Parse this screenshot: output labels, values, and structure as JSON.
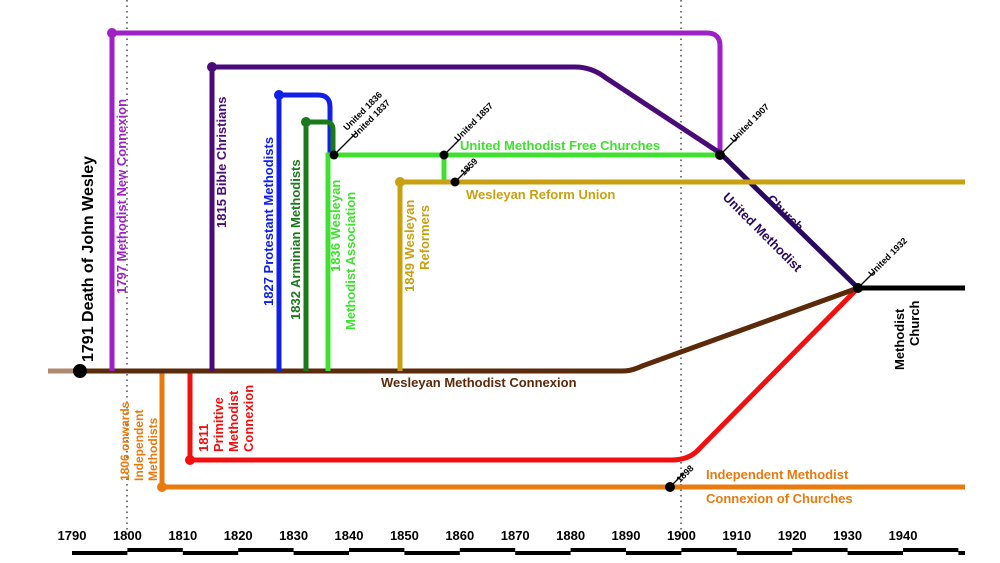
{
  "axis": {
    "years": [
      "1790",
      "1800",
      "1810",
      "1820",
      "1830",
      "1840",
      "1850",
      "1860",
      "1870",
      "1880",
      "1890",
      "1900",
      "1910",
      "1920",
      "1930",
      "1940"
    ]
  },
  "labels": {
    "wesley_death": "1791 Death of John Wesley",
    "new_connexion": "1797 Methodist New Connexion",
    "bible_christians": "1815 Bible Christians",
    "protestant_methodists": "1827 Protestant Methodists",
    "arminian_methodists": "1832 Arminian Methodists",
    "wma_line1": "1836 Wesleyan",
    "wma_line2": "Methodist Association",
    "reformers_line1": "1849 Wesleyan",
    "reformers_line2": "Reformers",
    "wesleyan_connexion": "Wesleyan Methodist Connexion",
    "independent_line1": "1806 onwards",
    "independent_line2": "Independent",
    "independent_line3": "Methodists",
    "primitive_line1": "1811",
    "primitive_line2": "Primitive",
    "primitive_line3": "Methodist",
    "primitive_line4": "Connexion",
    "free_churches": "United Methodist Free Churches",
    "reform_union": "Wesleyan Reform Union",
    "umc_line1": "United Methodist",
    "umc_line2": "Church",
    "methodist_church_line1": "Methodist",
    "methodist_church_line2": "Church",
    "imcc_line1": "Independent Methodist",
    "imcc_line2": "Connexion of Churches",
    "united_1836": "United 1836",
    "united_1837": "United 1837",
    "united_1857": "United 1857",
    "y1859": "1859",
    "united_1907": "United 1907",
    "united_1932": "United 1932",
    "y1898": "1898"
  },
  "colors": {
    "new_connexion": "#a020c8",
    "bible_christians": "#4a0a78",
    "protestant": "#1020e8",
    "arminian": "#1a7a1a",
    "free_churches": "#40e030",
    "reform": "#c8a010",
    "wesleyan": "#5a2a0a",
    "primitive": "#f01010",
    "independent": "#e87a10",
    "umc": "#2a0a60",
    "methodist_church": "#000000"
  }
}
